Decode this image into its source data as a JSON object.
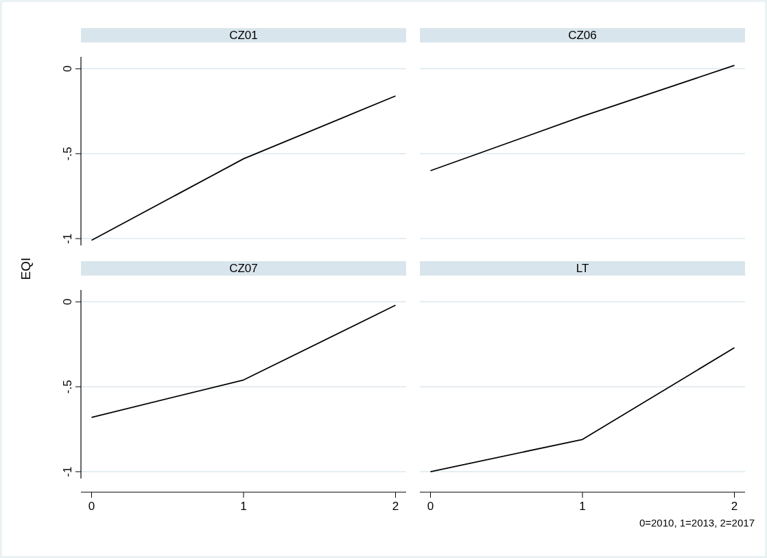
{
  "chart_data": [
    {
      "type": "line",
      "title": "CZ01",
      "ylabel": "EQI",
      "x": [
        0,
        1,
        2
      ],
      "xlim": [
        -0.07,
        2.07
      ],
      "ylim": [
        -1.04,
        0.07
      ],
      "yticks": [
        -1,
        {
          "value": -0.5,
          "label": "-.5"
        },
        0
      ],
      "grid": "y",
      "tick_labels": "y",
      "series": [
        {
          "color": "#000000",
          "values": [
            -1.01,
            -0.53,
            -0.16
          ]
        }
      ]
    },
    {
      "type": "line",
      "title": "CZ06",
      "x": [
        0,
        1,
        2
      ],
      "xlim": [
        -0.07,
        2.07
      ],
      "yticks": [
        -1,
        -0.5,
        0
      ],
      "grid": "y",
      "tick_labels": false,
      "series": [
        {
          "color": "#000000",
          "values": [
            -0.6,
            -0.28,
            0.02
          ]
        }
      ]
    },
    {
      "type": "line",
      "title": "CZ07",
      "x": [
        0,
        1,
        2
      ],
      "xlim": [
        -0.07,
        2.07
      ],
      "xticks": [
        0,
        1,
        2
      ],
      "ylim": [
        -1.04,
        0.07
      ],
      "yticks": [
        -1,
        {
          "value": -0.5,
          "label": "-.5"
        },
        0
      ],
      "grid": "y",
      "series": [
        {
          "color": "#000000",
          "values": [
            -0.68,
            -0.46,
            -0.02
          ]
        }
      ]
    },
    {
      "type": "line",
      "title": "LT",
      "x": [
        0,
        1,
        2
      ],
      "xlim": [
        -0.07,
        2.07
      ],
      "xticks": [
        0,
        1,
        2
      ],
      "yticks": [
        -1,
        -0.5,
        0
      ],
      "grid": "y",
      "tick_labels": "x",
      "annotations": [
        "0=2010, 1=2013, 2=2017"
      ],
      "series": [
        {
          "color": "#000000",
          "values": [
            -1.0,
            -0.81,
            -0.27
          ]
        }
      ]
    }
  ]
}
